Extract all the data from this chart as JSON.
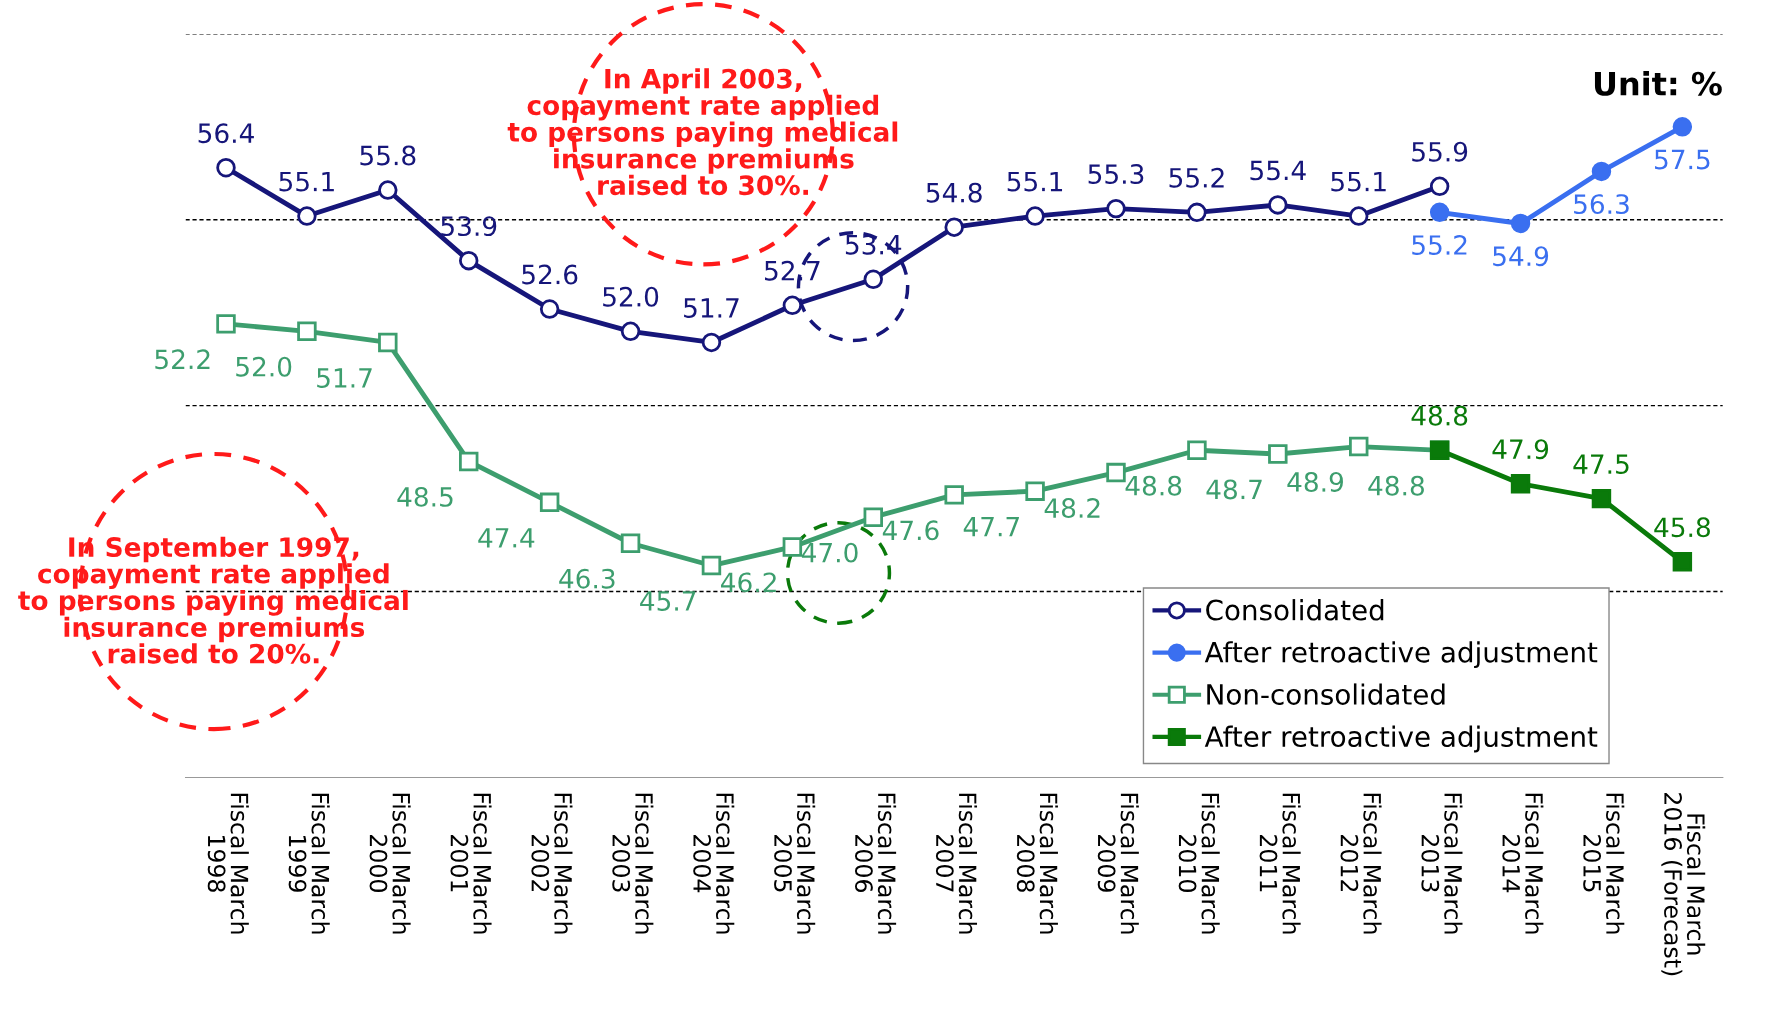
{
  "chart_data": {
    "type": "line",
    "categories": [
      "Fiscal March\n1998",
      "Fiscal March\n1999",
      "Fiscal March\n2000",
      "Fiscal March\n2001",
      "Fiscal March\n2002",
      "Fiscal March\n2003",
      "Fiscal March\n2004",
      "Fiscal March\n2005",
      "Fiscal March\n2006",
      "Fiscal March\n2007",
      "Fiscal March\n2008",
      "Fiscal March\n2009",
      "Fiscal March\n2010",
      "Fiscal March\n2011",
      "Fiscal March\n2012",
      "Fiscal March\n2013",
      "Fiscal March\n2014",
      "Fiscal March\n2015",
      "Fiscal March\n2016 (Forecast)"
    ],
    "series": [
      {
        "name": "Consolidated",
        "color": "#16167a",
        "marker": "circle",
        "values": [
          56.4,
          55.1,
          55.8,
          53.9,
          52.6,
          52.0,
          51.7,
          52.7,
          53.4,
          54.8,
          55.1,
          55.3,
          55.2,
          55.4,
          55.1,
          55.9,
          null,
          null,
          null
        ],
        "value_labels": [
          "56.4",
          "55.1",
          "55.8",
          "53.9",
          "52.6",
          "52.0",
          "51.7",
          "52.7",
          "53.4",
          "54.8",
          "55.1",
          "55.3",
          "55.2",
          "55.4",
          "55.1",
          "55.9",
          null,
          null,
          null
        ]
      },
      {
        "name": "After retroactive adjustment",
        "color": "#3a6ff0",
        "marker": "circle",
        "values": [
          null,
          null,
          null,
          null,
          null,
          null,
          null,
          null,
          null,
          null,
          null,
          null,
          null,
          null,
          null,
          55.2,
          54.9,
          56.3,
          57.5
        ],
        "value_labels": [
          null,
          null,
          null,
          null,
          null,
          null,
          null,
          null,
          null,
          null,
          null,
          null,
          null,
          null,
          null,
          "55.2",
          "54.9",
          "56.3",
          "57.5"
        ]
      },
      {
        "name": "Non-consolidated",
        "color": "#3d9e6e",
        "marker": "square",
        "values": [
          52.2,
          52.0,
          51.7,
          48.5,
          47.4,
          46.3,
          45.7,
          46.2,
          47.0,
          47.6,
          47.7,
          48.2,
          48.8,
          48.7,
          48.9,
          48.8,
          null,
          null,
          null
        ],
        "value_labels": [
          "52.2",
          "52.0",
          "51.7",
          "48.5",
          "47.4",
          "46.3",
          "45.7",
          "46.2",
          "47.0",
          "47.6",
          "47.7",
          "48.2",
          "48.8",
          "48.7",
          "48.9",
          "48.8",
          null,
          null,
          null
        ]
      },
      {
        "name": "After retroactive adjustment",
        "color": "#0a7a0a",
        "marker": "square",
        "values": [
          null,
          null,
          null,
          null,
          null,
          null,
          null,
          null,
          null,
          null,
          null,
          null,
          null,
          null,
          null,
          48.8,
          47.9,
          47.5,
          45.8
        ],
        "value_labels": [
          null,
          null,
          null,
          null,
          null,
          null,
          null,
          null,
          null,
          null,
          null,
          null,
          null,
          null,
          null,
          "48.8",
          "47.9",
          "47.5",
          "45.8"
        ]
      }
    ],
    "ylim": [
      40,
      60
    ],
    "yticks": [
      {
        "value": 45,
        "label": null
      },
      {
        "value": 50,
        "label": null
      },
      {
        "value": 55,
        "label": null
      },
      {
        "value": 60,
        "label": null
      }
    ],
    "grid": "y",
    "tick_labels": "x",
    "legend": "bottom right",
    "line_style": "solid",
    "annotations": [
      "Unit: %",
      "In April 2003,\ncopayment rate applied\nto persons paying medical\ninsurance premiums\nraised to 30%.",
      "In September 1997,\ncopayment rate applied\nto persons paying medical\ninsurance premiums\nraised to 20%."
    ]
  }
}
